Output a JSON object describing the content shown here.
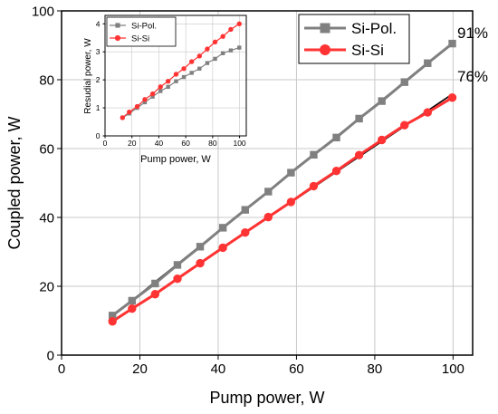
{
  "chart_data": [
    {
      "type": "line",
      "xlabel": "Pump power, W",
      "ylabel": "Coupled power, W",
      "xlim": [
        0,
        105
      ],
      "ylim": [
        0,
        100
      ],
      "xticks": [
        0,
        20,
        40,
        60,
        80,
        100
      ],
      "yticks": [
        0,
        20,
        40,
        60,
        80,
        100
      ],
      "grid": true,
      "legend_position": "top-right",
      "series": [
        {
          "name": "Si-Pol.",
          "color": "#808080",
          "marker": "square",
          "x": [
            13,
            18,
            23.9,
            29.6,
            35.4,
            41.2,
            46.9,
            52.8,
            58.6,
            64.4,
            70.2,
            76,
            81.8,
            87.6,
            93.5,
            99.8
          ],
          "y": [
            11.5,
            15.8,
            20.8,
            26.2,
            31.5,
            37,
            42.2,
            47.5,
            53,
            58.2,
            63.2,
            68.7,
            73.8,
            79.3,
            84.8,
            90.5
          ]
        },
        {
          "name": "Si-Si",
          "color": "#ff3333",
          "marker": "circle",
          "x": [
            13,
            18,
            23.9,
            29.6,
            35.4,
            41.2,
            46.9,
            52.8,
            58.6,
            64.4,
            70.2,
            76,
            81.8,
            87.6,
            93.5,
            99.8
          ],
          "y": [
            9.8,
            13.5,
            17.7,
            22.2,
            26.7,
            31.2,
            35.6,
            40.1,
            44.5,
            49.1,
            53.5,
            58.1,
            62.5,
            66.8,
            70.5,
            74.8
          ]
        }
      ],
      "fits": [
        {
          "color": "#000000",
          "x": [
            13,
            99.8
          ],
          "y": [
            11.3,
            90.5
          ]
        },
        {
          "color": "#000000",
          "x": [
            13,
            99.8
          ],
          "y": [
            9.6,
            75.8
          ]
        }
      ],
      "annotations": [
        "91%",
        "76%"
      ]
    },
    {
      "type": "line",
      "xlabel": "Pump power, W",
      "ylabel": "Resudial power, W",
      "xlim": [
        0,
        105
      ],
      "ylim": [
        0,
        4.3
      ],
      "xticks": [
        0,
        20,
        40,
        60,
        80,
        100
      ],
      "yticks": [
        0,
        1,
        2,
        3,
        4
      ],
      "grid": true,
      "legend_position": "top-left",
      "series": [
        {
          "name": "Si-Pol.",
          "color": "#808080",
          "marker": "square",
          "x": [
            13,
            18,
            23.9,
            29.6,
            35.4,
            41.2,
            46.9,
            52.8,
            58.6,
            64.4,
            70.2,
            76,
            81.8,
            87.6,
            93.5,
            99.8
          ],
          "y": [
            0.65,
            0.8,
            1.0,
            1.2,
            1.4,
            1.6,
            1.75,
            1.95,
            2.1,
            2.25,
            2.4,
            2.6,
            2.75,
            2.95,
            3.05,
            3.15
          ]
        },
        {
          "name": "Si-Si",
          "color": "#ff3333",
          "marker": "circle",
          "x": [
            13,
            18,
            23.9,
            29.6,
            35.4,
            41.2,
            46.9,
            52.8,
            58.6,
            64.4,
            70.2,
            76,
            81.8,
            87.6,
            93.5,
            99.8
          ],
          "y": [
            0.65,
            0.85,
            1.05,
            1.3,
            1.5,
            1.75,
            1.95,
            2.2,
            2.4,
            2.65,
            2.85,
            3.1,
            3.35,
            3.55,
            3.8,
            4.0
          ]
        }
      ]
    }
  ]
}
